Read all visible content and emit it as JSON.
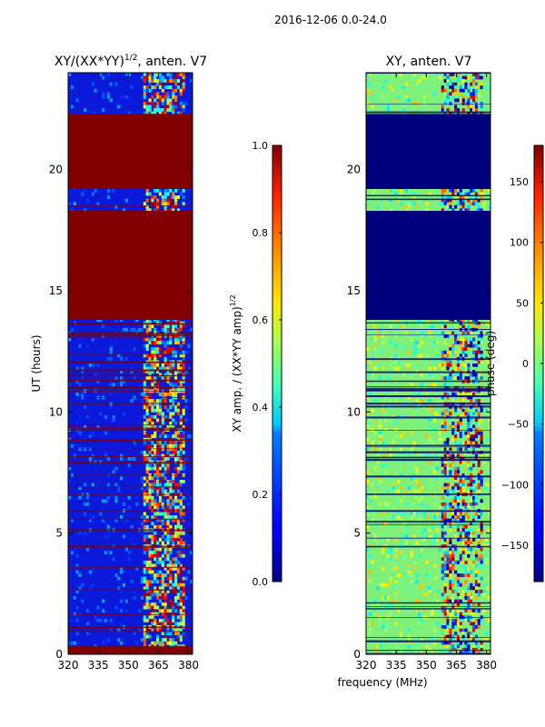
{
  "suptitle": "2016-12-06 0.0-24.0",
  "chart_data": [
    {
      "type": "heatmap",
      "title": "XY/(XX*YY)",
      "title_exponent": "1/2",
      "title_suffix": ", anten. V7",
      "xlabel": "",
      "ylabel": "UT (hours)",
      "xlim": [
        320,
        382
      ],
      "ylim": [
        0,
        24
      ],
      "xticks": [
        "320",
        "335",
        "350",
        "365",
        "380"
      ],
      "xtick_values": [
        320,
        335,
        350,
        365,
        380
      ],
      "yticks": [
        "0",
        "5",
        "10",
        "15",
        "20"
      ],
      "ytick_values": [
        0,
        5,
        10,
        15,
        20
      ],
      "colormap": "jet",
      "background_color": "#0a1ad8",
      "saturated_color": "#800000",
      "saturated_time_ranges": [
        [
          0.0,
          0.3
        ],
        [
          13.8,
          18.3
        ],
        [
          19.2,
          22.3
        ]
      ],
      "active_frequency_range": [
        358,
        378
      ],
      "colorbar": {
        "label": "XY amp. / (XX*YY amp)",
        "label_exponent": "1/2",
        "range": [
          0.0,
          1.0
        ],
        "ticks": [
          "0.0",
          "0.2",
          "0.4",
          "0.6",
          "0.8",
          "1.0"
        ],
        "tick_values": [
          0.0,
          0.2,
          0.4,
          0.6,
          0.8,
          1.0
        ]
      }
    },
    {
      "type": "heatmap",
      "title": "XY, anten. V7",
      "xlabel": "frequency (MHz)",
      "ylabel": "",
      "xlim": [
        320,
        382
      ],
      "ylim": [
        0,
        24
      ],
      "xticks": [
        "320",
        "335",
        "350",
        "365",
        "380"
      ],
      "xtick_values": [
        320,
        335,
        350,
        365,
        380
      ],
      "yticks": [
        "0",
        "5",
        "10",
        "15",
        "20"
      ],
      "ytick_values": [
        0,
        5,
        10,
        15,
        20
      ],
      "colormap": "jet",
      "background_color": "#7ff07a",
      "saturated_color": "#00007f",
      "saturated_time_ranges": [
        [
          13.8,
          18.3
        ],
        [
          19.2,
          22.3
        ]
      ],
      "active_frequency_range": [
        358,
        378
      ],
      "colorbar": {
        "label": "phase (deg)",
        "range": [
          -180,
          180
        ],
        "ticks": [
          "−150",
          "−100",
          "−50",
          "0",
          "50",
          "100",
          "150"
        ],
        "tick_values": [
          -150,
          -100,
          -50,
          0,
          50,
          100,
          150
        ]
      }
    }
  ]
}
